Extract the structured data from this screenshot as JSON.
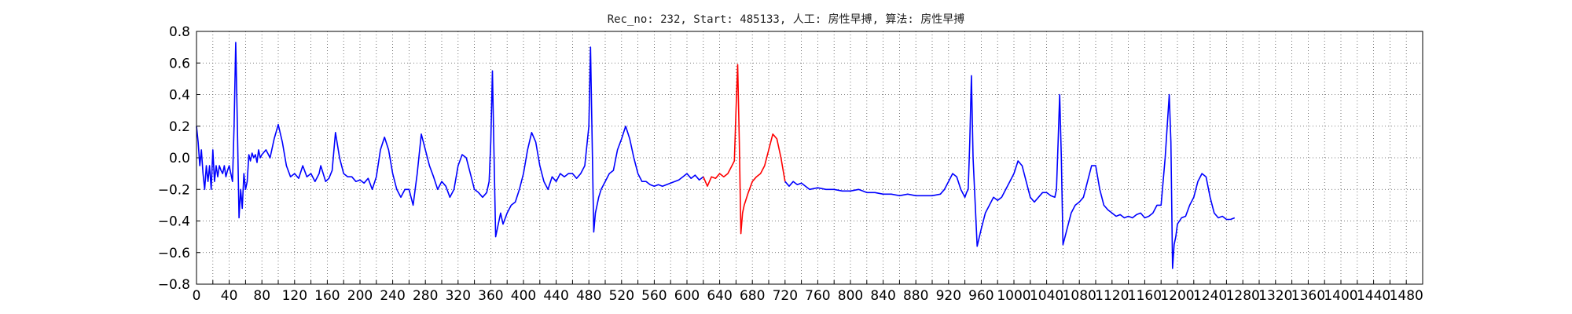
{
  "chart_data": {
    "type": "line",
    "title": "Rec_no: 232, Start: 485133, 人工: 房性早搏, 算法: 房性早搏",
    "xlabel": "",
    "ylabel": "",
    "xlim": [
      0,
      1500
    ],
    "ylim": [
      -0.8,
      0.8
    ],
    "grid": true,
    "y_ticks": [
      -0.8,
      -0.6,
      -0.4,
      -0.2,
      0.0,
      0.2,
      0.4,
      0.6,
      0.8
    ],
    "y_tick_labels": [
      "−0.8",
      "−0.6",
      "−0.4",
      "−0.2",
      "0.0",
      "0.2",
      "0.4",
      "0.6",
      "0.8"
    ],
    "x_ticks": [
      0,
      20,
      40,
      60,
      80,
      100,
      120,
      140,
      160,
      180,
      200,
      220,
      240,
      260,
      280,
      300,
      320,
      340,
      360,
      380,
      400,
      420,
      440,
      460,
      480,
      500,
      520,
      540,
      560,
      580,
      600,
      620,
      640,
      660,
      680,
      700,
      720,
      740,
      760,
      780,
      800,
      820,
      840,
      860,
      880,
      900,
      920,
      940,
      960,
      980,
      1000,
      1020,
      1040,
      1060,
      1080,
      1100,
      1120,
      1140,
      1160,
      1180,
      1200,
      1220,
      1240,
      1260,
      1280,
      1300,
      1320,
      1340,
      1360,
      1380,
      1400,
      1420,
      1440,
      1460,
      1480,
      1500
    ],
    "x_tick_labels": [
      "0",
      "",
      "40",
      "",
      "80",
      "",
      "120",
      "",
      "160",
      "",
      "200",
      "",
      "240",
      "",
      "280",
      "",
      "320",
      "",
      "360",
      "",
      "400",
      "",
      "440",
      "",
      "480",
      "",
      "520",
      "",
      "560",
      "",
      "600",
      "",
      "640",
      "",
      "680",
      "",
      "720",
      "",
      "760",
      "",
      "800",
      "",
      "840",
      "",
      "880",
      "",
      "920",
      "",
      "960",
      "",
      "1000",
      "",
      "1040",
      "",
      "1080",
      "",
      "1120",
      "",
      "1160",
      "",
      "1200",
      "",
      "1240",
      "",
      "1280",
      "",
      "1320",
      "",
      "1360",
      "",
      "1400",
      "",
      "1440",
      "",
      "1480",
      ""
    ],
    "series": [
      {
        "color": "#0000ff",
        "x": [
          0,
          2,
          4,
          6,
          8,
          10,
          12,
          14,
          16,
          18,
          20,
          22,
          24,
          26,
          28,
          30,
          32,
          34,
          36,
          38,
          40,
          42,
          44,
          46,
          48,
          50,
          52,
          54,
          56,
          58,
          60,
          62,
          64,
          66,
          68,
          70,
          72,
          74,
          76,
          78,
          80,
          85,
          90,
          95,
          100,
          105,
          110,
          115,
          120,
          125,
          130,
          135,
          140,
          145,
          148,
          150,
          152,
          155,
          158,
          162,
          166,
          170,
          175,
          180,
          185,
          190,
          195,
          200,
          205,
          210,
          215,
          220,
          225,
          230,
          235,
          240,
          245,
          250,
          255,
          260,
          265,
          270,
          275,
          280,
          285,
          290,
          295,
          300,
          305,
          310,
          315,
          320,
          325,
          330,
          335,
          340,
          345,
          350,
          355,
          358,
          360,
          362,
          364,
          366,
          368,
          370,
          372,
          375,
          380,
          385,
          390,
          395,
          400,
          405,
          410,
          415,
          420,
          425,
          430,
          435,
          440,
          445,
          450,
          455,
          460,
          465,
          470,
          475,
          480,
          482,
          484,
          486,
          488,
          490,
          492,
          495,
          500,
          505,
          510,
          515,
          520,
          525,
          530,
          535,
          540,
          545,
          550,
          555,
          560,
          565,
          570,
          575,
          580,
          585,
          590,
          595,
          600,
          605,
          610,
          615,
          620
        ],
        "y": [
          0.2,
          0.1,
          -0.05,
          0.05,
          -0.1,
          -0.2,
          -0.05,
          -0.15,
          -0.05,
          -0.2,
          0.05,
          -0.15,
          -0.05,
          -0.12,
          -0.05,
          -0.08,
          -0.1,
          -0.05,
          -0.12,
          -0.08,
          -0.05,
          -0.1,
          -0.15,
          0.2,
          0.73,
          0.2,
          -0.38,
          -0.2,
          -0.32,
          -0.1,
          -0.2,
          -0.15,
          0.02,
          -0.02,
          0.03,
          0.0,
          0.02,
          -0.03,
          0.05,
          0.0,
          0.02,
          0.05,
          0.0,
          0.12,
          0.21,
          0.1,
          -0.05,
          -0.12,
          -0.1,
          -0.13,
          -0.05,
          -0.12,
          -0.1,
          -0.15,
          -0.12,
          -0.1,
          -0.05,
          -0.1,
          -0.15,
          -0.13,
          -0.08,
          0.16,
          0.0,
          -0.1,
          -0.12,
          -0.12,
          -0.15,
          -0.14,
          -0.16,
          -0.13,
          -0.2,
          -0.12,
          0.05,
          0.13,
          0.05,
          -0.1,
          -0.2,
          -0.25,
          -0.2,
          -0.2,
          -0.3,
          -0.1,
          0.15,
          0.05,
          -0.05,
          -0.12,
          -0.2,
          -0.15,
          -0.18,
          -0.25,
          -0.2,
          -0.05,
          0.02,
          0.0,
          -0.1,
          -0.2,
          -0.22,
          -0.25,
          -0.22,
          -0.15,
          0.1,
          0.55,
          0.0,
          -0.5,
          -0.45,
          -0.4,
          -0.35,
          -0.42,
          -0.35,
          -0.3,
          -0.28,
          -0.2,
          -0.1,
          0.05,
          0.16,
          0.1,
          -0.05,
          -0.15,
          -0.2,
          -0.12,
          -0.15,
          -0.1,
          -0.12,
          -0.1,
          -0.1,
          -0.13,
          -0.1,
          -0.05,
          0.2,
          0.7,
          0.1,
          -0.47,
          -0.35,
          -0.3,
          -0.25,
          -0.2,
          -0.15,
          -0.1,
          -0.08,
          0.05,
          0.12,
          0.2,
          0.12,
          0.0,
          -0.1,
          -0.15,
          -0.15,
          -0.17,
          -0.18,
          -0.17,
          -0.18,
          -0.17,
          -0.16,
          -0.15,
          -0.14,
          -0.12,
          -0.1,
          -0.13,
          -0.11,
          -0.14,
          -0.12
        ]
      },
      {
        "color": "#ff0000",
        "x": [
          620,
          625,
          630,
          635,
          640,
          645,
          650,
          655,
          658,
          660,
          662,
          664,
          666,
          668,
          670,
          675,
          680,
          685,
          690,
          695,
          700,
          705,
          710,
          715,
          720
        ],
        "y": [
          -0.12,
          -0.18,
          -0.12,
          -0.13,
          -0.1,
          -0.12,
          -0.1,
          -0.05,
          -0.02,
          0.3,
          0.59,
          0.1,
          -0.48,
          -0.35,
          -0.3,
          -0.22,
          -0.15,
          -0.12,
          -0.1,
          -0.05,
          0.05,
          0.15,
          0.12,
          0.0,
          -0.15
        ]
      },
      {
        "color": "#0000ff",
        "x": [
          720,
          725,
          730,
          735,
          740,
          745,
          750,
          760,
          770,
          780,
          790,
          800,
          810,
          820,
          830,
          840,
          850,
          860,
          870,
          880,
          890,
          900,
          910,
          915,
          920,
          925,
          930,
          935,
          940,
          942,
          944,
          946,
          948,
          950,
          955,
          960,
          965,
          970,
          975,
          980,
          985,
          990,
          995,
          1000,
          1005,
          1010,
          1015,
          1020,
          1025,
          1030,
          1035,
          1040,
          1045,
          1050,
          1052,
          1054,
          1056,
          1058,
          1060,
          1065,
          1070,
          1075,
          1080,
          1085,
          1090,
          1095,
          1100,
          1105,
          1110,
          1115,
          1120,
          1125,
          1130,
          1135,
          1140,
          1145,
          1150,
          1155,
          1160,
          1165,
          1170,
          1175,
          1180,
          1185,
          1190,
          1192,
          1194,
          1196,
          1198,
          1200,
          1205,
          1210,
          1215,
          1220,
          1225,
          1230,
          1235,
          1240,
          1245,
          1250,
          1255,
          1260,
          1265,
          1270
        ],
        "y": [
          -0.15,
          -0.18,
          -0.15,
          -0.17,
          -0.16,
          -0.18,
          -0.2,
          -0.19,
          -0.2,
          -0.2,
          -0.21,
          -0.21,
          -0.2,
          -0.22,
          -0.22,
          -0.23,
          -0.23,
          -0.24,
          -0.23,
          -0.24,
          -0.24,
          -0.24,
          -0.23,
          -0.2,
          -0.15,
          -0.1,
          -0.12,
          -0.2,
          -0.25,
          -0.22,
          -0.2,
          0.1,
          0.52,
          0.0,
          -0.56,
          -0.45,
          -0.35,
          -0.3,
          -0.25,
          -0.27,
          -0.25,
          -0.2,
          -0.15,
          -0.1,
          -0.02,
          -0.05,
          -0.15,
          -0.25,
          -0.28,
          -0.25,
          -0.22,
          -0.22,
          -0.24,
          -0.25,
          -0.2,
          0.1,
          0.4,
          0.0,
          -0.55,
          -0.45,
          -0.35,
          -0.3,
          -0.28,
          -0.25,
          -0.15,
          -0.05,
          -0.05,
          -0.2,
          -0.3,
          -0.33,
          -0.35,
          -0.37,
          -0.36,
          -0.38,
          -0.37,
          -0.38,
          -0.36,
          -0.35,
          -0.38,
          -0.37,
          -0.35,
          -0.3,
          -0.3,
          0.0,
          0.4,
          0.1,
          -0.7,
          -0.55,
          -0.5,
          -0.42,
          -0.38,
          -0.37,
          -0.3,
          -0.25,
          -0.15,
          -0.1,
          -0.12,
          -0.25,
          -0.35,
          -0.38,
          -0.37,
          -0.39,
          -0.39,
          -0.38
        ]
      }
    ]
  }
}
